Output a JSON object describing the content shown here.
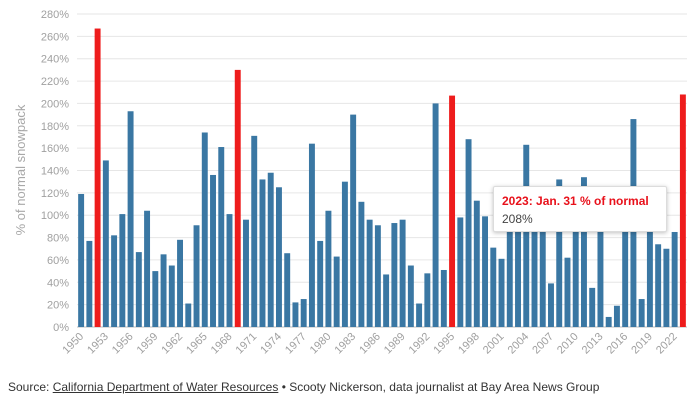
{
  "chart_data": {
    "type": "bar",
    "ylabel": "% of normal snowpack",
    "ylim": [
      0,
      280
    ],
    "yticks": [
      0,
      20,
      40,
      60,
      80,
      100,
      120,
      140,
      160,
      180,
      200,
      220,
      240,
      260,
      280
    ],
    "ytick_suffix": "%",
    "grid": true,
    "colors": {
      "default": "#3a77a3",
      "highlight": "#ee1c1c"
    },
    "highlight_years": [
      1952,
      1969,
      1995,
      2023
    ],
    "xtick_years": [
      1950,
      1953,
      1956,
      1959,
      1962,
      1965,
      1968,
      1971,
      1974,
      1977,
      1980,
      1983,
      1986,
      1989,
      1992,
      1995,
      1998,
      2001,
      2004,
      2007,
      2010,
      2013,
      2016,
      2019,
      2022
    ],
    "years": [
      1950,
      1951,
      1952,
      1953,
      1954,
      1955,
      1956,
      1957,
      1958,
      1959,
      1960,
      1961,
      1962,
      1963,
      1964,
      1965,
      1966,
      1967,
      1968,
      1969,
      1970,
      1971,
      1972,
      1973,
      1974,
      1975,
      1976,
      1977,
      1978,
      1979,
      1980,
      1981,
      1982,
      1983,
      1984,
      1985,
      1986,
      1987,
      1988,
      1989,
      1990,
      1991,
      1992,
      1993,
      1994,
      1995,
      1996,
      1997,
      1998,
      1999,
      2000,
      2001,
      2002,
      2003,
      2004,
      2005,
      2006,
      2007,
      2008,
      2009,
      2010,
      2011,
      2012,
      2013,
      2014,
      2015,
      2016,
      2017,
      2018,
      2019,
      2020,
      2021,
      2022,
      2023
    ],
    "values": [
      119,
      77,
      267,
      149,
      82,
      101,
      193,
      67,
      104,
      50,
      65,
      55,
      78,
      21,
      91,
      174,
      136,
      161,
      101,
      230,
      96,
      171,
      132,
      138,
      125,
      66,
      22,
      25,
      164,
      77,
      104,
      63,
      130,
      190,
      112,
      96,
      91,
      47,
      93,
      96,
      55,
      21,
      48,
      200,
      51,
      207,
      98,
      168,
      113,
      99,
      71,
      61,
      85,
      85,
      163,
      86,
      85,
      39,
      132,
      62,
      95,
      134,
      35,
      85,
      9,
      19,
      85,
      186,
      25,
      85,
      74,
      70,
      85,
      208
    ]
  },
  "tooltip": {
    "title": "2023: Jan. 31 % of normal",
    "value": "208%"
  },
  "footer": {
    "source_prefix": "Source: ",
    "source_link": "California Department of Water Resources",
    "rest": " • Scooty Nickerson, data journalist at Bay Area News Group"
  }
}
